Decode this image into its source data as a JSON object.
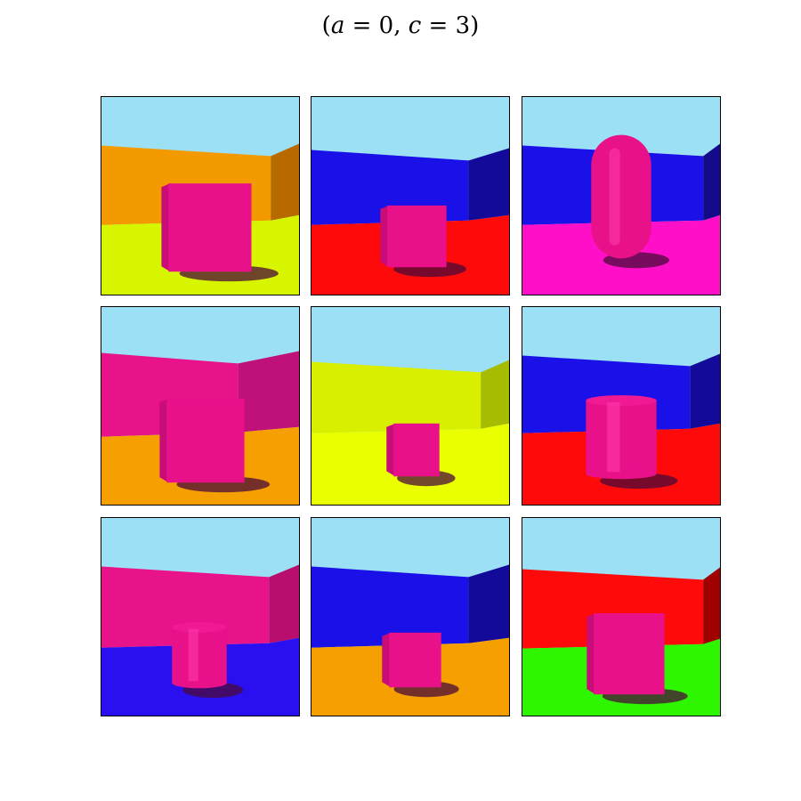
{
  "title": {
    "open": "(",
    "var_a": "a",
    "eq_a": " = 0, ",
    "var_c": "c",
    "eq_c": " = 3",
    "close": ")"
  },
  "colors": {
    "sky": "#9be0f5",
    "object": "#e8118a",
    "shadow": "#4a0a3a"
  },
  "tiles": [
    {
      "object": "cube",
      "wall": "#f39a00",
      "wall_side": "#b86a00",
      "floor": "#d8f500"
    },
    {
      "object": "cube",
      "wall": "#1a10e8",
      "wall_side": "#140a9a",
      "floor": "#ff0a0a"
    },
    {
      "object": "capsule",
      "wall": "#1a10e8",
      "wall_side": "#120a8a",
      "floor": "#ff10c8"
    },
    {
      "object": "cube",
      "wall": "#e8128a",
      "wall_side": "#c0107a",
      "floor": "#f5a000"
    },
    {
      "object": "cube",
      "wall": "#d8f000",
      "wall_side": "#a6bc00",
      "floor": "#eaff00"
    },
    {
      "object": "cylinder",
      "wall": "#1a10e8",
      "wall_side": "#140a9a",
      "floor": "#ff0a0a"
    },
    {
      "object": "cylinder",
      "wall": "#e8128a",
      "wall_side": "#b80e6e",
      "floor": "#2a10f0"
    },
    {
      "object": "cube",
      "wall": "#1a10e8",
      "wall_side": "#140a9a",
      "floor": "#f5a000"
    },
    {
      "object": "cube",
      "wall": "#ff0a0a",
      "wall_side": "#a00000",
      "floor": "#2ef500"
    }
  ]
}
